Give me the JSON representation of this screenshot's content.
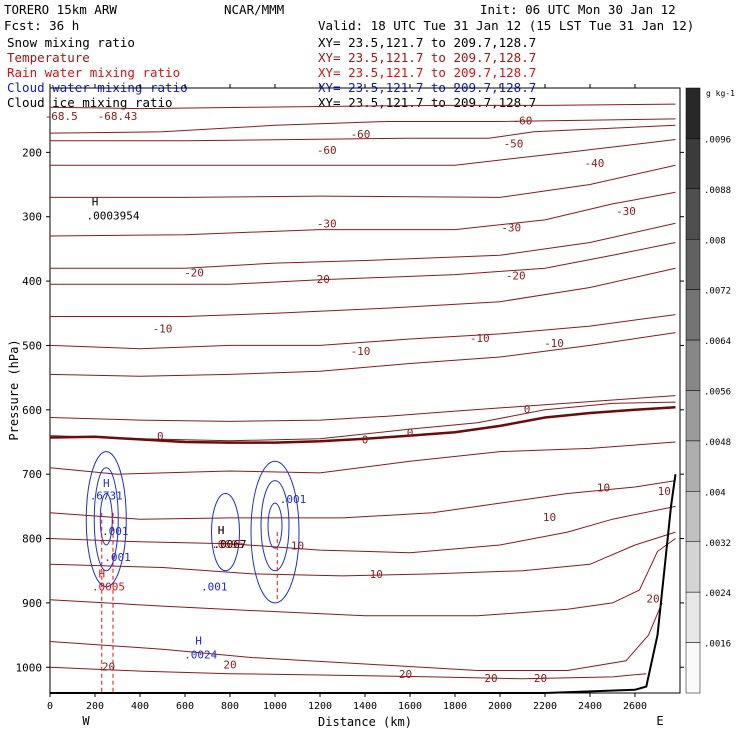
{
  "header": {
    "model": "TORERO  15km ARW",
    "org": "NCAR/MMM",
    "init": "Init: 06 UTC Mon 30 Jan 12",
    "fcst": "Fcst:   36 h",
    "valid": "Valid: 18 UTC Tue 31 Jan 12 (15 LST Tue 31 Jan 12)",
    "xy_line": "XY=  23.5,121.7 to 209.7,128.7"
  },
  "fields": [
    {
      "label": "Snow mixing ratio",
      "color": "#000000"
    },
    {
      "label": "Temperature",
      "color": "#a01818"
    },
    {
      "label": "Rain water mixing ratio",
      "color": "#e01010"
    },
    {
      "label": "Cloud water mixing ratio",
      "color": "#1020c0"
    },
    {
      "label": "Cloud ice mixing ratio",
      "color": "#000000"
    }
  ],
  "chart_data": {
    "type": "contour cross-section",
    "xlabel": "Distance (km)",
    "ylabel": "Pressure (hPa)",
    "x_ticks": [
      0,
      200,
      400,
      600,
      800,
      1000,
      1200,
      1400,
      1600,
      1800,
      2000,
      2200,
      2400,
      2600
    ],
    "y_ticks": [
      200,
      300,
      400,
      500,
      600,
      700,
      800,
      900,
      1000
    ],
    "xlim": [
      0,
      2800
    ],
    "ylim_pressure": [
      1040,
      100
    ],
    "x_end_labels": {
      "left": "W",
      "right": "E"
    },
    "colorbar": {
      "unit": "g kg-1",
      "ticks": [
        ".0096",
        ".0088",
        ".008",
        ".0072",
        ".0064",
        ".0056",
        ".0048",
        ".004",
        ".0032",
        ".0024",
        ".0016"
      ]
    },
    "temperature_contours": [
      {
        "label": "-60",
        "points": [
          [
            0,
            130
          ],
          [
            400,
            132
          ],
          [
            900,
            130
          ],
          [
            1400,
            128
          ],
          [
            1800,
            127
          ],
          [
            2200,
            127
          ],
          [
            2780,
            125
          ]
        ]
      },
      {
        "label": "-60",
        "points": [
          [
            0,
            170
          ],
          [
            500,
            168
          ],
          [
            1000,
            158
          ],
          [
            1500,
            152
          ],
          [
            2000,
            152
          ],
          [
            2780,
            148
          ]
        ]
      },
      {
        "label": "-50",
        "points": [
          [
            0,
            182
          ],
          [
            600,
            182
          ],
          [
            1100,
            180
          ],
          [
            1600,
            178
          ],
          [
            1950,
            178
          ],
          [
            2150,
            168
          ],
          [
            2780,
            158
          ]
        ]
      },
      {
        "label": "-40",
        "points": [
          [
            0,
            220
          ],
          [
            600,
            220
          ],
          [
            1200,
            220
          ],
          [
            1800,
            220
          ],
          [
            2050,
            210
          ],
          [
            2300,
            200
          ],
          [
            2780,
            180
          ]
        ]
      },
      {
        "label": "-30",
        "points": [
          [
            0,
            270
          ],
          [
            600,
            270
          ],
          [
            1200,
            268
          ],
          [
            2000,
            270
          ],
          [
            2400,
            250
          ],
          [
            2780,
            220
          ]
        ]
      },
      {
        "label": "-30",
        "points": [
          [
            0,
            330
          ],
          [
            600,
            328
          ],
          [
            1200,
            320
          ],
          [
            1800,
            320
          ],
          [
            2200,
            305
          ],
          [
            2500,
            280
          ],
          [
            2780,
            262
          ]
        ]
      },
      {
        "label": "-20",
        "points": [
          [
            0,
            380
          ],
          [
            600,
            380
          ],
          [
            1000,
            372
          ],
          [
            1400,
            368
          ],
          [
            2000,
            360
          ],
          [
            2400,
            340
          ],
          [
            2780,
            310
          ]
        ]
      },
      {
        "label": "-20",
        "points": [
          [
            0,
            405
          ],
          [
            800,
            405
          ],
          [
            1200,
            398
          ],
          [
            1800,
            390
          ],
          [
            2200,
            380
          ],
          [
            2500,
            360
          ],
          [
            2780,
            340
          ]
        ]
      },
      {
        "label": "-10",
        "points": [
          [
            0,
            455
          ],
          [
            600,
            455
          ],
          [
            1000,
            450
          ],
          [
            1500,
            442
          ],
          [
            2000,
            432
          ],
          [
            2400,
            410
          ],
          [
            2780,
            380
          ]
        ]
      },
      {
        "label": "-10",
        "points": [
          [
            0,
            500
          ],
          [
            400,
            505
          ],
          [
            800,
            500
          ],
          [
            1200,
            500
          ],
          [
            1600,
            490
          ],
          [
            2000,
            482
          ],
          [
            2400,
            470
          ],
          [
            2780,
            452
          ]
        ]
      },
      {
        "label": "-10",
        "points": [
          [
            0,
            545
          ],
          [
            400,
            548
          ],
          [
            800,
            545
          ],
          [
            1200,
            540
          ],
          [
            1600,
            528
          ],
          [
            2000,
            518
          ],
          [
            2400,
            500
          ],
          [
            2780,
            480
          ]
        ]
      },
      {
        "label": "0",
        "points": [
          [
            0,
            612
          ],
          [
            400,
            616
          ],
          [
            800,
            618
          ],
          [
            1200,
            616
          ],
          [
            1500,
            610
          ],
          [
            1800,
            602
          ],
          [
            2200,
            592
          ],
          [
            2780,
            578
          ]
        ]
      },
      {
        "label": "0",
        "points": [
          [
            0,
            640
          ],
          [
            400,
            645
          ],
          [
            800,
            648
          ],
          [
            1200,
            645
          ],
          [
            1600,
            630
          ],
          [
            1900,
            620
          ],
          [
            2200,
            600
          ],
          [
            2500,
            590
          ],
          [
            2780,
            588
          ]
        ]
      },
      {
        "label": "10",
        "points": [
          [
            0,
            690
          ],
          [
            300,
            700
          ],
          [
            800,
            695
          ],
          [
            1200,
            698
          ],
          [
            1600,
            680
          ],
          [
            2000,
            665
          ],
          [
            2400,
            660
          ],
          [
            2780,
            650
          ]
        ]
      },
      {
        "label": "10",
        "points": [
          [
            0,
            760
          ],
          [
            400,
            770
          ],
          [
            800,
            768
          ],
          [
            1300,
            768
          ],
          [
            1700,
            760
          ],
          [
            2000,
            745
          ],
          [
            2300,
            730
          ],
          [
            2600,
            720
          ],
          [
            2780,
            710
          ]
        ]
      },
      {
        "label": "10",
        "points": [
          [
            0,
            800
          ],
          [
            400,
            805
          ],
          [
            800,
            808
          ],
          [
            1200,
            818
          ],
          [
            1600,
            822
          ],
          [
            2000,
            810
          ],
          [
            2300,
            790
          ],
          [
            2500,
            770
          ],
          [
            2780,
            750
          ]
        ]
      },
      {
        "label": "10",
        "points": [
          [
            0,
            840
          ],
          [
            500,
            845
          ],
          [
            900,
            855
          ],
          [
            1300,
            858
          ],
          [
            1700,
            855
          ],
          [
            2100,
            850
          ],
          [
            2400,
            840
          ],
          [
            2600,
            810
          ],
          [
            2780,
            790
          ]
        ]
      },
      {
        "label": "20",
        "points": [
          [
            0,
            895
          ],
          [
            500,
            905
          ],
          [
            900,
            912
          ],
          [
            1400,
            920
          ],
          [
            1900,
            920
          ],
          [
            2300,
            910
          ],
          [
            2500,
            900
          ],
          [
            2620,
            880
          ],
          [
            2700,
            820
          ],
          [
            2780,
            800
          ]
        ]
      },
      {
        "label": "20",
        "points": [
          [
            0,
            960
          ],
          [
            500,
            972
          ],
          [
            900,
            985
          ],
          [
            1400,
            995
          ],
          [
            1900,
            1005
          ],
          [
            2300,
            1005
          ],
          [
            2560,
            990
          ],
          [
            2660,
            950
          ],
          [
            2720,
            900
          ]
        ]
      },
      {
        "label": "20",
        "points": [
          [
            0,
            1000
          ],
          [
            400,
            1006
          ],
          [
            800,
            1010
          ],
          [
            1200,
            1012
          ],
          [
            1700,
            1015
          ],
          [
            2100,
            1018
          ],
          [
            2500,
            1015
          ],
          [
            2650,
            1010
          ]
        ]
      }
    ],
    "temperature_labels": [
      {
        "text": "-68.5",
        "x": 50,
        "p": 145
      },
      {
        "text": "-68.43",
        "x": 300,
        "p": 145
      },
      {
        "text": "-60",
        "x": 1380,
        "p": 173
      },
      {
        "text": "-60",
        "x": 1230,
        "p": 198
      },
      {
        "text": "-60",
        "x": 2100,
        "p": 152
      },
      {
        "text": "-50",
        "x": 2060,
        "p": 188
      },
      {
        "text": "-40",
        "x": 2420,
        "p": 218
      },
      {
        "text": "-30",
        "x": 1230,
        "p": 312
      },
      {
        "text": "-30",
        "x": 2050,
        "p": 318
      },
      {
        "text": "-30",
        "x": 2560,
        "p": 293
      },
      {
        "text": "-20",
        "x": 640,
        "p": 388
      },
      {
        "text": "-20",
        "x": 1200,
        "p": 398
      },
      {
        "text": "-20",
        "x": 2070,
        "p": 393
      },
      {
        "text": "-10",
        "x": 500,
        "p": 475
      },
      {
        "text": "-10",
        "x": 1380,
        "p": 510
      },
      {
        "text": "-10",
        "x": 1910,
        "p": 490
      },
      {
        "text": "-10",
        "x": 2240,
        "p": 498
      },
      {
        "text": "0",
        "x": 490,
        "p": 642
      },
      {
        "text": "0",
        "x": 1400,
        "p": 648
      },
      {
        "text": "0",
        "x": 1600,
        "p": 637
      },
      {
        "text": "0",
        "x": 2120,
        "p": 600
      },
      {
        "text": "10",
        "x": 2460,
        "p": 722
      },
      {
        "text": "10",
        "x": 2220,
        "p": 768
      },
      {
        "text": "10",
        "x": 2730,
        "p": 728
      },
      {
        "text": "10",
        "x": 1100,
        "p": 812
      },
      {
        "text": "10",
        "x": 1450,
        "p": 857
      },
      {
        "text": "20",
        "x": 2680,
        "p": 895
      },
      {
        "text": "20",
        "x": 260,
        "p": 1000
      },
      {
        "text": "20",
        "x": 800,
        "p": 997
      },
      {
        "text": "20",
        "x": 1580,
        "p": 1012
      },
      {
        "text": "20",
        "x": 1960,
        "p": 1018
      },
      {
        "text": "20",
        "x": 2180,
        "p": 1018
      }
    ],
    "terrain": [
      [
        0,
        1040
      ],
      [
        800,
        1040
      ],
      [
        1600,
        1040
      ],
      [
        2200,
        1040
      ],
      [
        2600,
        1035
      ],
      [
        2650,
        1030
      ],
      [
        2700,
        950
      ],
      [
        2730,
        850
      ],
      [
        2760,
        750
      ],
      [
        2780,
        700
      ]
    ],
    "freezing_level": [
      [
        0,
        643
      ],
      [
        200,
        642
      ],
      [
        400,
        646
      ],
      [
        600,
        650
      ],
      [
        800,
        651
      ],
      [
        1000,
        651
      ],
      [
        1200,
        649
      ],
      [
        1400,
        645
      ],
      [
        1600,
        640
      ],
      [
        1800,
        635
      ],
      [
        2000,
        625
      ],
      [
        2200,
        612
      ],
      [
        2400,
        605
      ],
      [
        2600,
        600
      ],
      [
        2780,
        596
      ]
    ],
    "cloud_water_labels": [
      {
        "text": "H",
        "x": 250,
        "p": 715
      },
      {
        "text": ".6731",
        "x": 250,
        "p": 735
      },
      {
        "text": ".001",
        "x": 290,
        "p": 790
      },
      {
        "text": ".001",
        "x": 300,
        "p": 830
      },
      {
        "text": ".001",
        "x": 730,
        "p": 876
      },
      {
        "text": ".001",
        "x": 1080,
        "p": 740
      },
      {
        "text": "H",
        "x": 660,
        "p": 960
      },
      {
        "text": ".0024",
        "x": 670,
        "p": 982
      }
    ],
    "rain_labels": [
      {
        "text": "H",
        "x": 230,
        "p": 856
      },
      {
        "text": ".0005",
        "x": 260,
        "p": 876
      },
      {
        "text": "H",
        "x": 760,
        "p": 788
      },
      {
        "text": ".0695",
        "x": 790,
        "p": 810
      }
    ],
    "snow_labels": [
      {
        "text": "H",
        "x": 200,
        "p": 278
      },
      {
        "text": ".0003954",
        "x": 280,
        "p": 300
      },
      {
        "text": "H",
        "x": 760,
        "p": 788
      },
      {
        "text": ".0067",
        "x": 800,
        "p": 810
      }
    ]
  }
}
